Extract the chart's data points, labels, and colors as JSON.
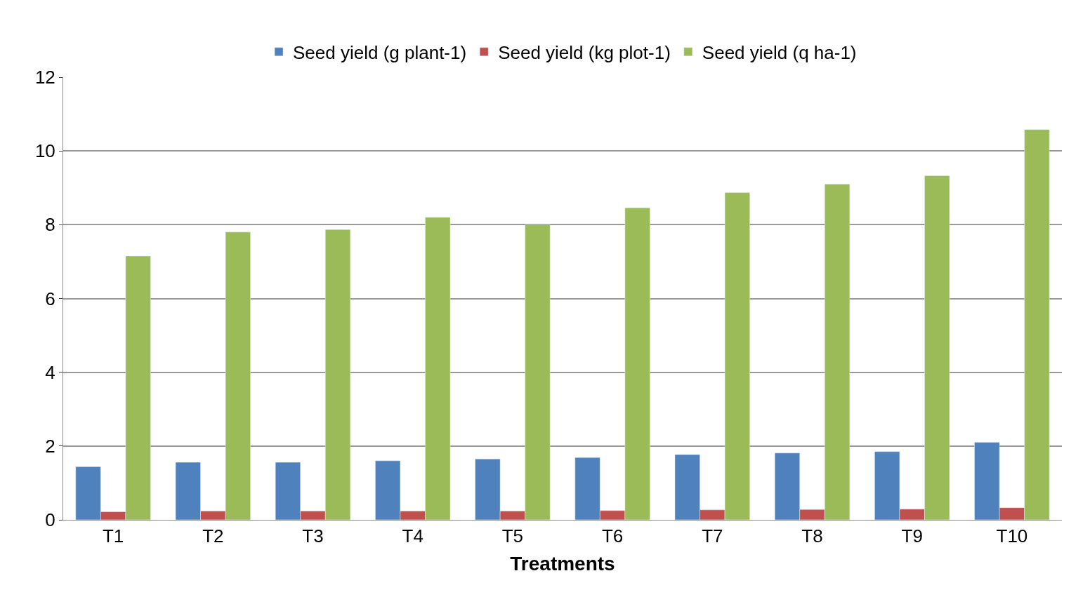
{
  "chart_data": {
    "type": "bar",
    "xlabel": "Treatments",
    "categories": [
      "T1",
      "T2",
      "T3",
      "T4",
      "T5",
      "T6",
      "T7",
      "T8",
      "T9",
      "T10"
    ],
    "series": [
      {
        "name": "Seed yield (g plant-1)",
        "color": "#4f81bd",
        "values": [
          1.44,
          1.56,
          1.56,
          1.6,
          1.65,
          1.69,
          1.77,
          1.81,
          1.85,
          2.1
        ]
      },
      {
        "name": "Seed yield (kg plot-1)",
        "color": "#c0504d",
        "values": [
          0.22,
          0.24,
          0.24,
          0.24,
          0.24,
          0.25,
          0.27,
          0.28,
          0.29,
          0.33
        ]
      },
      {
        "name": "Seed yield (q ha-1)",
        "color": "#9bbb59",
        "values": [
          7.15,
          7.8,
          7.87,
          8.2,
          8.0,
          8.46,
          8.87,
          9.1,
          9.33,
          10.58
        ]
      }
    ],
    "ylim": [
      0,
      12
    ],
    "yticks": [
      0,
      2,
      4,
      6,
      8,
      10,
      12
    ],
    "grid": "y",
    "legend": "top"
  }
}
